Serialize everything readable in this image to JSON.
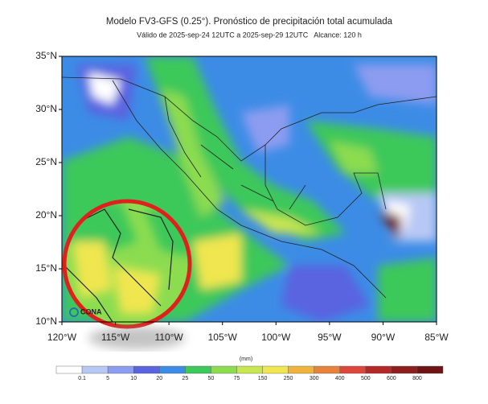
{
  "map": {
    "title": "Modelo FV3-GFS (0.25°). Pronóstico de precipitación total acumulada",
    "subtitle": "Válido de 2025-sep-24 12UTC a 2025-sep-29 12UTC   Alcance: 120 h",
    "lat_labels": [
      "35°N",
      "30°N",
      "25°N",
      "20°N",
      "15°N",
      "10°N"
    ],
    "lon_labels": [
      "120°W",
      "115°W",
      "110°W",
      "105°W",
      "100°W",
      "95°W",
      "90°W",
      "85°W"
    ],
    "logo": "CONA",
    "colorbar": {
      "unit": "(mm)",
      "levels": [
        0.1,
        5,
        10,
        20,
        25,
        50,
        75,
        150,
        250,
        300,
        400,
        500,
        600,
        800
      ],
      "colors": [
        "#ffffff",
        "#b8c8f4",
        "#8c9cf0",
        "#5a64e0",
        "#3c8ce6",
        "#3cc85a",
        "#8cdc50",
        "#c8e650",
        "#f0e650",
        "#f0b43c",
        "#e6823c",
        "#dc463c",
        "#b42828",
        "#8c1e1e",
        "#6e1414"
      ]
    }
  }
}
